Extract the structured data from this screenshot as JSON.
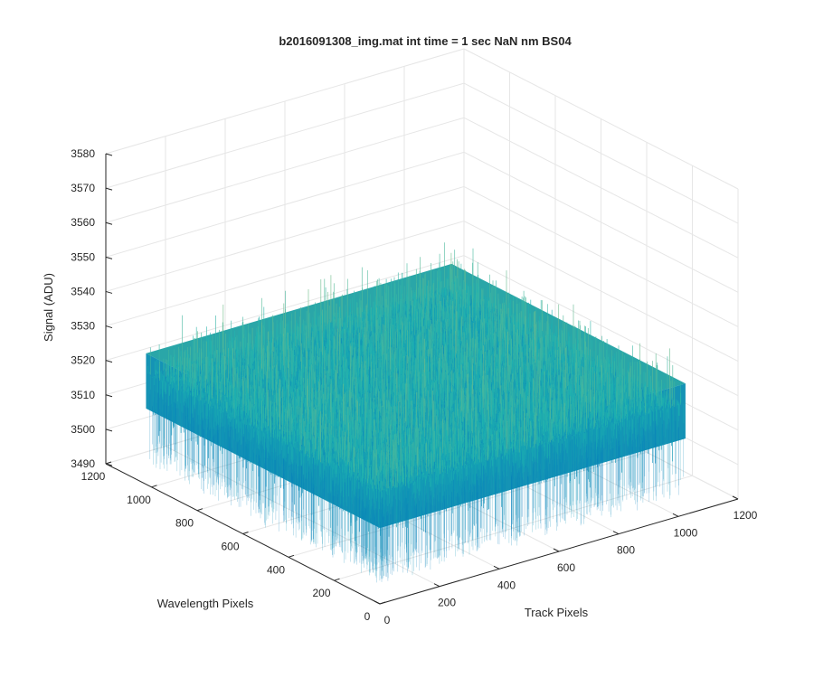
{
  "chart_data": {
    "type": "surface",
    "title": "b2016091308_img.mat int time = 1 sec  NaN nm BS04",
    "xlabel": "Track Pixels",
    "ylabel": "Wavelength Pixels",
    "zlabel": "Signal (ADU)",
    "xlim": [
      0,
      1200
    ],
    "ylim": [
      0,
      1200
    ],
    "zlim": [
      3490,
      3580
    ],
    "x_ticks": [
      "0",
      "200",
      "400",
      "600",
      "800",
      "1000",
      "1200"
    ],
    "y_ticks": [
      "0",
      "200",
      "400",
      "600",
      "800",
      "1000",
      "1200"
    ],
    "z_ticks": [
      "3490",
      "3500",
      "3510",
      "3520",
      "3530",
      "3540",
      "3550",
      "3560",
      "3570",
      "3580"
    ],
    "data_extent": {
      "x": [
        0,
        1024
      ],
      "y": [
        0,
        1024
      ]
    },
    "surface": {
      "mean": 3520,
      "noise_range": [
        3495,
        3555
      ],
      "colormap": "parula"
    },
    "grid": true,
    "colors": {
      "low": "#0072bd",
      "mid": "#1fb3b0",
      "high": "#dbc75a",
      "axis": "#262626",
      "grid": "#e6e6e6"
    }
  }
}
